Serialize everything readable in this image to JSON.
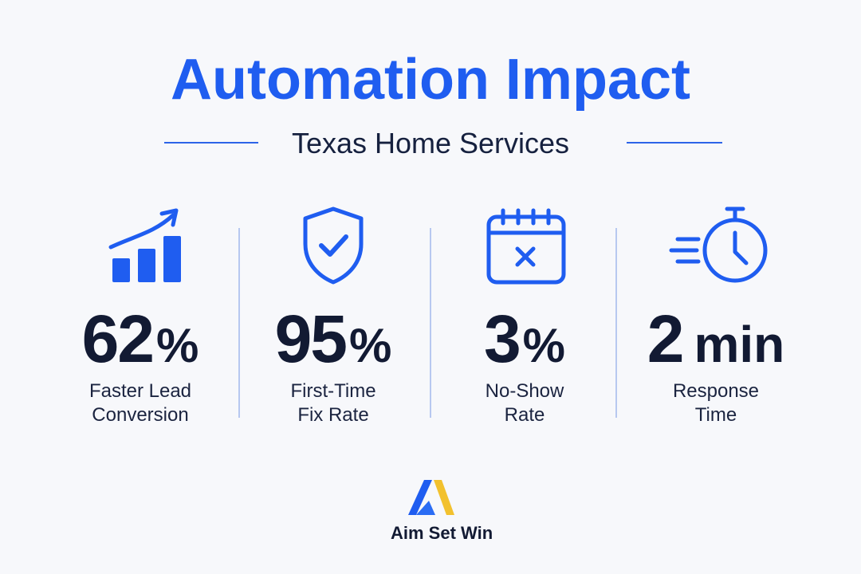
{
  "header": {
    "title": "Automation Impact",
    "subtitle": "Texas Home Services"
  },
  "stats": [
    {
      "icon": "growth-chart-icon",
      "value": "62",
      "unit": "%",
      "label": "Faster Lead\nConversion"
    },
    {
      "icon": "shield-check-icon",
      "value": "95",
      "unit": "%",
      "label": "First-Time\nFix Rate"
    },
    {
      "icon": "calendar-x-icon",
      "value": "3",
      "unit": "%",
      "label": "No-Show\nRate"
    },
    {
      "icon": "stopwatch-icon",
      "value": "2",
      "unit": "min",
      "label": "Response\nTime"
    }
  ],
  "brand": {
    "name": "Aim Set Win"
  },
  "colors": {
    "accent": "#1f5df0",
    "text": "#121a33",
    "divider": "#b7c8f0",
    "logo_yellow": "#f2c12e",
    "background": "#f7f8fb"
  }
}
